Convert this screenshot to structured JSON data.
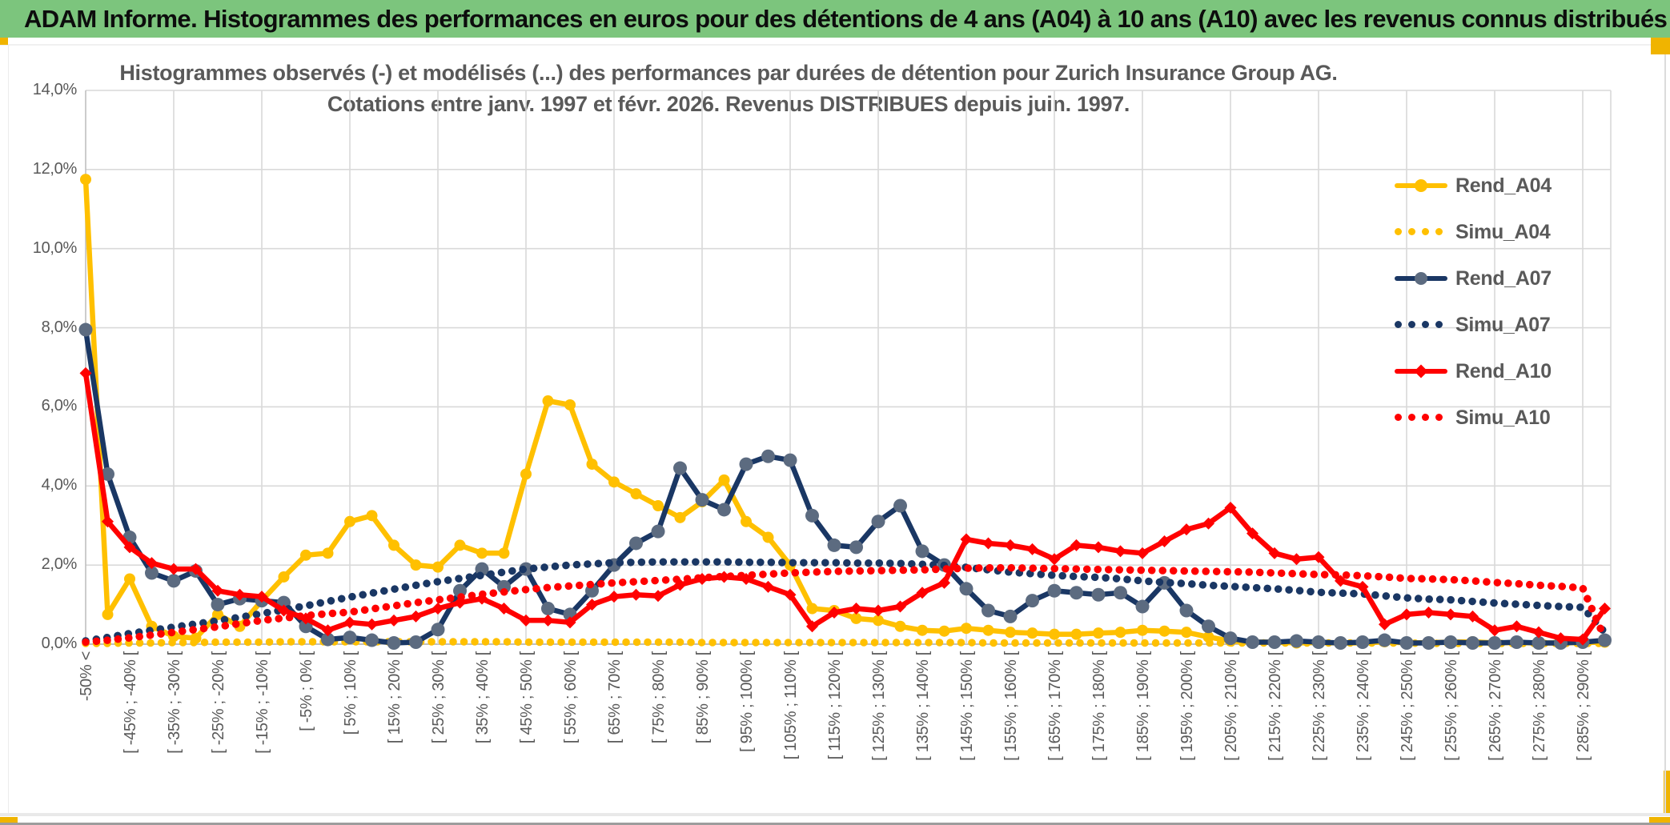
{
  "header": {
    "title": "ADAM Informe. Histogrammes des performances en euros pour des détentions de 4 ans (A04) à 10 ans (A10) avec les revenus connus distribués"
  },
  "chart": {
    "title_line1": "Histogrammes observés (-) et modélisés (...) des performances par durées de détention pour Zurich Insurance Group AG.",
    "title_line2": "Cotations entre janv. 1997 et févr. 2026. Revenus DISTRIBUES depuis juin. 1997."
  },
  "legend": [
    {
      "label": "Rend_A04",
      "series": "Rend_A04"
    },
    {
      "label": "Simu_A04",
      "series": "Simu_A04"
    },
    {
      "label": "Rend_A07",
      "series": "Rend_A07"
    },
    {
      "label": "Simu_A07",
      "series": "Simu_A07"
    },
    {
      "label": "Rend_A10",
      "series": "Rend_A10"
    },
    {
      "label": "Simu_A10",
      "series": "Simu_A10"
    }
  ],
  "colors": {
    "header_green": "#7CC57D",
    "accent_gold": "#F0B400",
    "grid": "#D9D9D9",
    "axis": "#BFBFBF",
    "label_gray": "#595959",
    "gold": "#FFC000",
    "navy": "#1A3764",
    "navy_marker": "#5C6B80",
    "red": "#FF0000"
  },
  "chart_data": {
    "type": "line",
    "title": "Histogrammes observés (-) et modélisés (...) des performances par durées de détention pour Zurich Insurance Group AG. Cotations entre janv. 1997 et févr. 2026. Revenus DISTRIBUES depuis juin. 1997.",
    "xlabel": "",
    "ylabel": "",
    "ylim": [
      0,
      14
    ],
    "y_unit": "%",
    "grid": true,
    "legend_position": "right",
    "y_tick_labels": [
      "0,0%",
      "2,0%",
      "4,0%",
      "6,0%",
      "8,0%",
      "10,0%",
      "12,0%",
      "14,0%"
    ],
    "x_bin_count": 70,
    "x_ticks_every": 2,
    "x_tick_labels": [
      "-50% <",
      "[ -45% ; -40% [",
      "[ -35% ; -30% [",
      "[ -25% ; -20% [",
      "[ -15% ; -10% [",
      "[ -5% ; 0% [",
      "[ 5% ; 10% [",
      "[ 15% ; 20% [",
      "[ 25% ; 30% [",
      "[ 35% ; 40% [",
      "[ 45% ; 50% [",
      "[ 55% ; 60% [",
      "[ 65% ; 70% [",
      "[ 75% ; 80% [",
      "[ 85% ; 90% [",
      "[ 95% ; 100% [",
      "[ 105% ; 110% [",
      "[ 115% ; 120% [",
      "[ 125% ; 130% [",
      "[ 135% ; 140% [",
      "[ 145% ; 150% [",
      "[ 155% ; 160% [",
      "[ 165% ; 170% [",
      "[ 175% ; 180% [",
      "[ 185% ; 190% [",
      "[ 195% ; 200% [",
      "[ 205% ; 210% [",
      "[ 215% ; 220% [",
      "[ 225% ; 230% [",
      "[ 235% ; 240% [",
      "[ 245% ; 250% [",
      "[ 255% ; 260% [",
      "[ 265% ; 270% [",
      "[ 275% ; 280% [",
      "[ 285% ; 290% ["
    ],
    "series": [
      {
        "name": "Rend_A04",
        "style": "solid",
        "color": "#FFC000",
        "marker": "circle",
        "marker_color": "#FFC000",
        "values": [
          11.75,
          0.75,
          1.65,
          0.45,
          0.2,
          0.15,
          0.75,
          0.45,
          1.1,
          1.7,
          2.25,
          2.3,
          3.1,
          3.25,
          2.5,
          2.0,
          1.95,
          2.5,
          2.3,
          2.3,
          4.3,
          6.15,
          6.05,
          4.55,
          4.1,
          3.8,
          3.5,
          3.2,
          3.6,
          4.15,
          3.1,
          2.7,
          2.0,
          0.9,
          0.85,
          0.65,
          0.6,
          0.45,
          0.35,
          0.33,
          0.4,
          0.35,
          0.3,
          0.28,
          0.25,
          0.25,
          0.28,
          0.3,
          0.35,
          0.33,
          0.3,
          0.18,
          0.08,
          0.05,
          0.05,
          0.03,
          0.04,
          0.03,
          0.03,
          0.06,
          0.03,
          0.04,
          0.05,
          0.06,
          0.03,
          0.04,
          0.03,
          0.03,
          0.04,
          0.05
        ]
      },
      {
        "name": "Simu_A04",
        "style": "dotted",
        "color": "#FFC000",
        "marker": "none",
        "values": [
          0.02,
          0.02,
          0.03,
          0.03,
          0.04,
          0.04,
          0.05,
          0.05,
          0.05,
          0.06,
          0.06,
          0.06,
          0.06,
          0.06,
          0.06,
          0.06,
          0.06,
          0.06,
          0.06,
          0.06,
          0.05,
          0.05,
          0.05,
          0.05,
          0.05,
          0.05,
          0.05,
          0.05,
          0.04,
          0.04,
          0.04,
          0.04,
          0.04,
          0.04,
          0.04,
          0.04,
          0.04,
          0.04,
          0.04,
          0.04,
          0.04,
          0.03,
          0.03,
          0.03,
          0.03,
          0.03,
          0.03,
          0.03,
          0.03,
          0.03,
          0.03,
          0.03,
          0.03,
          0.03,
          0.03,
          0.03,
          0.03,
          0.03,
          0.03,
          0.03,
          0.03,
          0.02,
          0.02,
          0.02,
          0.02,
          0.02,
          0.02,
          0.02,
          0.02,
          0.02
        ]
      },
      {
        "name": "Rend_A07",
        "style": "solid",
        "color": "#1A3764",
        "marker": "circle",
        "marker_color": "#5C6B80",
        "values": [
          7.95,
          4.3,
          2.7,
          1.8,
          1.6,
          1.85,
          1.0,
          1.15,
          1.1,
          1.05,
          0.45,
          0.12,
          0.17,
          0.1,
          0.03,
          0.05,
          0.37,
          1.35,
          1.9,
          1.45,
          1.9,
          0.9,
          0.75,
          1.35,
          2.0,
          2.55,
          2.85,
          4.45,
          3.65,
          3.4,
          4.55,
          4.75,
          4.65,
          3.25,
          2.5,
          2.45,
          3.1,
          3.5,
          2.35,
          2.0,
          1.4,
          0.85,
          0.7,
          1.1,
          1.35,
          1.3,
          1.25,
          1.3,
          0.95,
          1.55,
          0.85,
          0.45,
          0.15,
          0.05,
          0.05,
          0.08,
          0.05,
          0.03,
          0.05,
          0.1,
          0.03,
          0.03,
          0.05,
          0.03,
          0.03,
          0.05,
          0.03,
          0.03,
          0.05,
          0.1
        ]
      },
      {
        "name": "Simu_A07",
        "style": "dotted",
        "color": "#1A3764",
        "marker": "none",
        "values": [
          0.08,
          0.17,
          0.27,
          0.35,
          0.43,
          0.51,
          0.59,
          0.68,
          0.77,
          0.87,
          0.97,
          1.08,
          1.19,
          1.29,
          1.39,
          1.49,
          1.58,
          1.66,
          1.74,
          1.82,
          1.9,
          1.95,
          2.0,
          2.03,
          2.06,
          2.07,
          2.08,
          2.08,
          2.08,
          2.08,
          2.07,
          2.07,
          2.06,
          2.06,
          2.06,
          2.05,
          2.05,
          2.04,
          2.02,
          1.99,
          1.94,
          1.88,
          1.82,
          1.78,
          1.74,
          1.71,
          1.69,
          1.65,
          1.6,
          1.56,
          1.53,
          1.49,
          1.46,
          1.43,
          1.4,
          1.36,
          1.31,
          1.29,
          1.27,
          1.22,
          1.17,
          1.14,
          1.12,
          1.08,
          1.04,
          1.01,
          0.98,
          0.95,
          0.93,
          0.3
        ]
      },
      {
        "name": "Rend_A10",
        "style": "solid",
        "color": "#FF0000",
        "marker": "diamond",
        "marker_color": "#FF0000",
        "values": [
          6.85,
          3.1,
          2.45,
          2.05,
          1.9,
          1.9,
          1.35,
          1.25,
          1.2,
          0.85,
          0.65,
          0.35,
          0.55,
          0.5,
          0.6,
          0.7,
          0.9,
          1.05,
          1.15,
          0.9,
          0.6,
          0.6,
          0.55,
          1.0,
          1.2,
          1.25,
          1.22,
          1.5,
          1.65,
          1.7,
          1.65,
          1.45,
          1.25,
          0.45,
          0.8,
          0.9,
          0.85,
          0.95,
          1.3,
          1.55,
          2.65,
          2.55,
          2.5,
          2.4,
          2.15,
          2.5,
          2.45,
          2.35,
          2.3,
          2.6,
          2.9,
          3.05,
          3.45,
          2.8,
          2.3,
          2.15,
          2.2,
          1.6,
          1.45,
          0.5,
          0.75,
          0.8,
          0.75,
          0.7,
          0.35,
          0.45,
          0.3,
          0.15,
          0.12,
          0.9
        ]
      },
      {
        "name": "Simu_A10",
        "style": "dotted",
        "color": "#FF0000",
        "marker": "none",
        "values": [
          0.05,
          0.1,
          0.16,
          0.23,
          0.3,
          0.37,
          0.44,
          0.52,
          0.6,
          0.66,
          0.72,
          0.77,
          0.81,
          0.89,
          0.97,
          1.05,
          1.12,
          1.19,
          1.26,
          1.32,
          1.38,
          1.43,
          1.47,
          1.51,
          1.55,
          1.58,
          1.61,
          1.64,
          1.68,
          1.71,
          1.74,
          1.77,
          1.8,
          1.82,
          1.84,
          1.85,
          1.86,
          1.87,
          1.88,
          1.9,
          1.92,
          1.93,
          1.93,
          1.92,
          1.91,
          1.9,
          1.89,
          1.88,
          1.87,
          1.86,
          1.85,
          1.84,
          1.83,
          1.82,
          1.8,
          1.78,
          1.76,
          1.75,
          1.73,
          1.7,
          1.66,
          1.65,
          1.63,
          1.6,
          1.56,
          1.53,
          1.49,
          1.46,
          1.42,
          0.15
        ]
      }
    ]
  }
}
